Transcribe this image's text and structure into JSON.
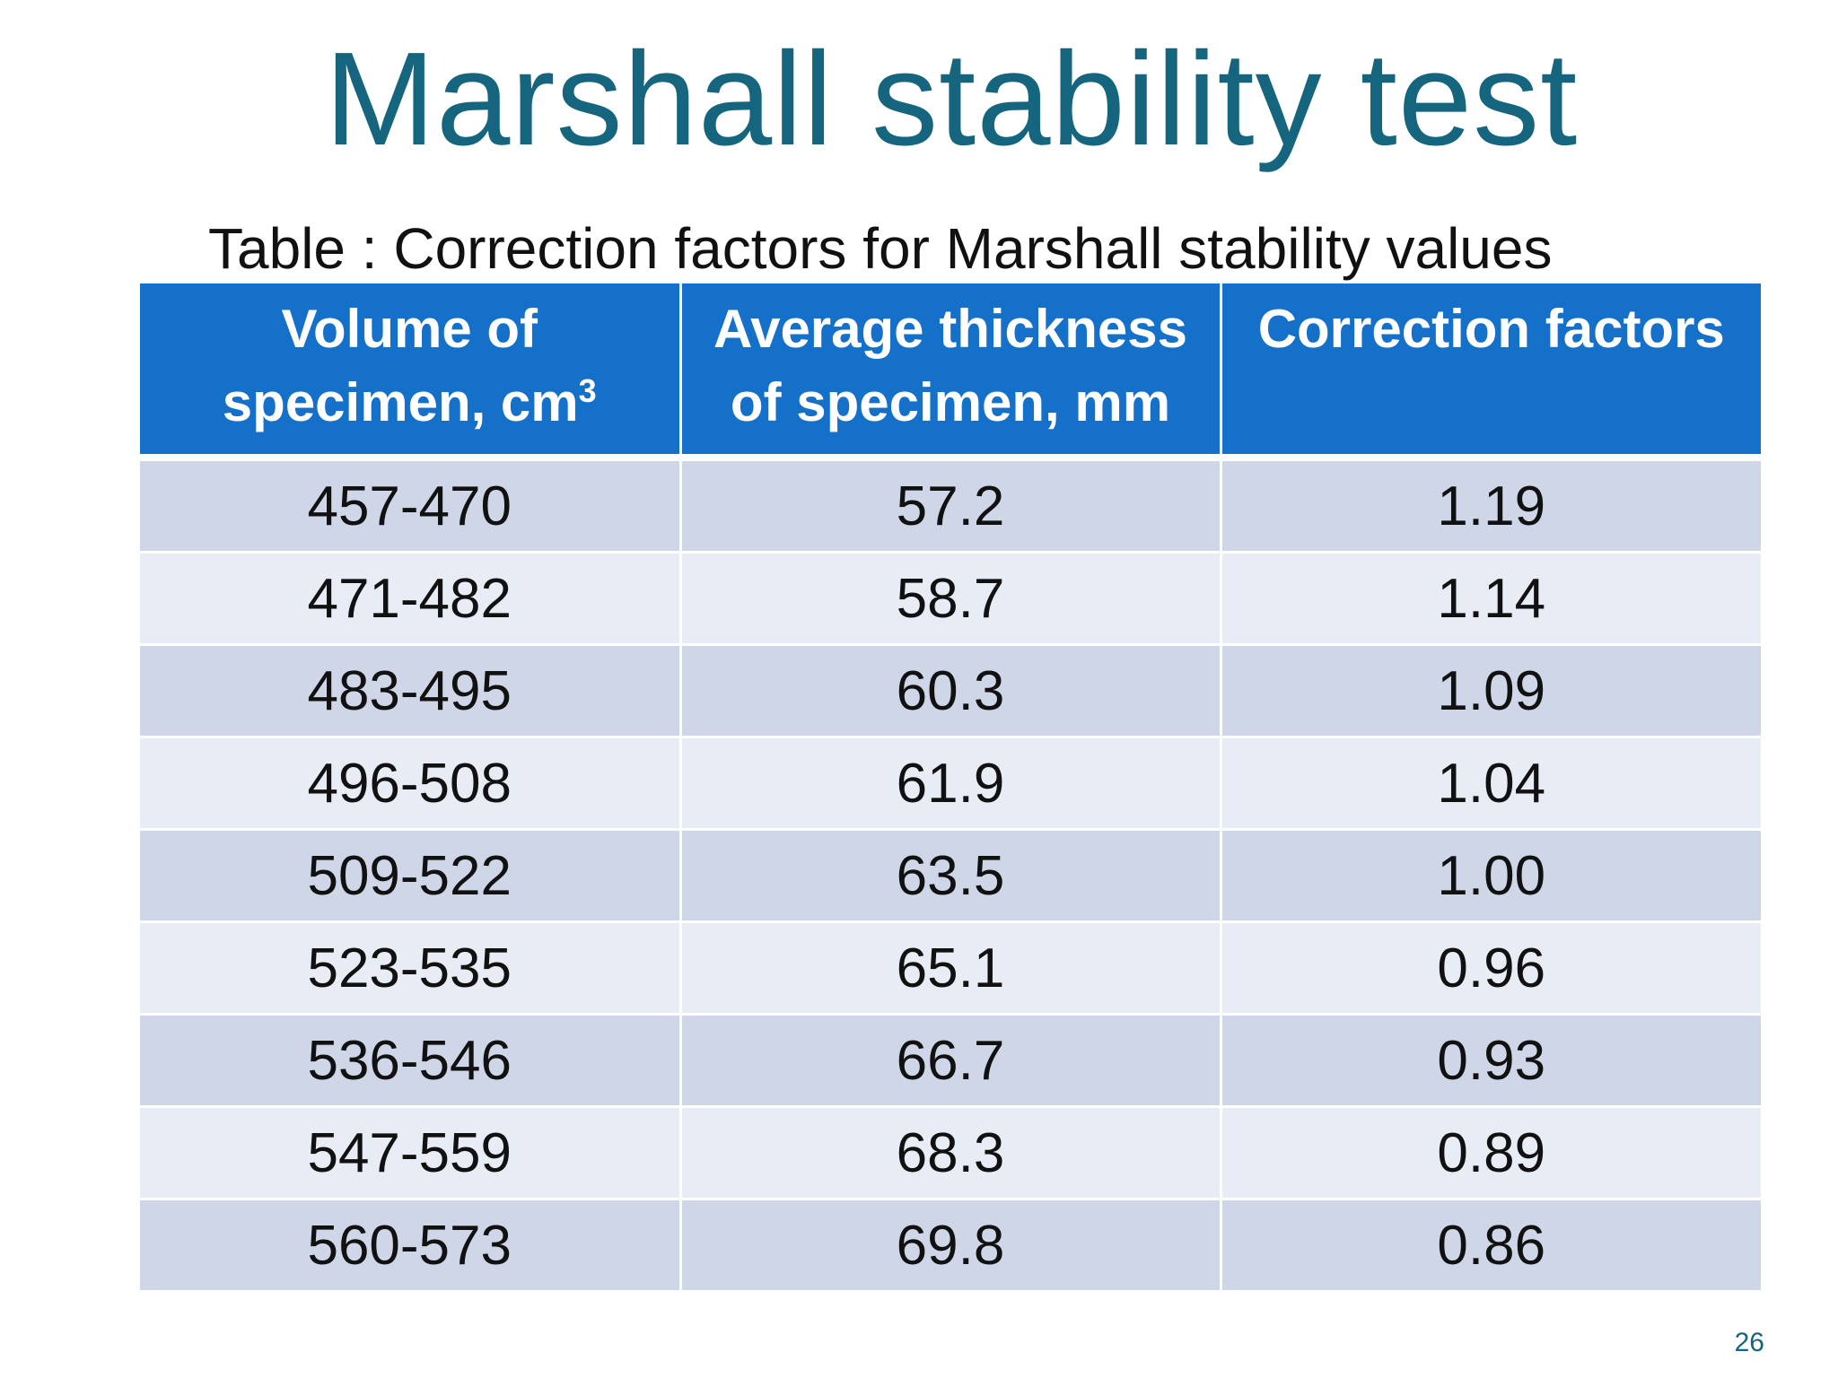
{
  "slide": {
    "title": "Marshall stability test",
    "caption": "Table : Correction factors for Marshall stability values",
    "page_number": "26"
  },
  "table": {
    "headers": [
      {
        "line1": "Volume of",
        "line2": "specimen, cm",
        "sup": "3"
      },
      {
        "line1": "Average thickness",
        "line2": "of specimen, mm",
        "sup": ""
      },
      {
        "line1": "Correction factors",
        "line2": "",
        "sup": ""
      }
    ],
    "rows": [
      [
        "457-470",
        "57.2",
        "1.19"
      ],
      [
        "471-482",
        "58.7",
        "1.14"
      ],
      [
        "483-495",
        "60.3",
        "1.09"
      ],
      [
        "496-508",
        "61.9",
        "1.04"
      ],
      [
        "509-522",
        "63.5",
        "1.00"
      ],
      [
        "523-535",
        "65.1",
        "0.96"
      ],
      [
        "536-546",
        "66.7",
        "0.93"
      ],
      [
        "547-559",
        "68.3",
        "0.89"
      ],
      [
        "560-573",
        "69.8",
        "0.86"
      ]
    ]
  }
}
